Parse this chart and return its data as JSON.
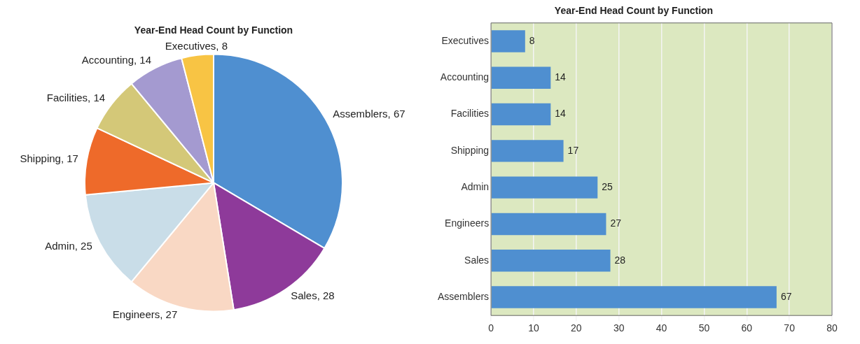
{
  "chart_data": [
    {
      "type": "pie",
      "title": "Year-End Head Count by Function",
      "categories": [
        "Assemblers",
        "Sales",
        "Engineers",
        "Admin",
        "Shipping",
        "Facilities",
        "Accounting",
        "Executives"
      ],
      "values": [
        67,
        28,
        27,
        25,
        17,
        14,
        14,
        8
      ],
      "colors": [
        "#4f8fd0",
        "#8e3a9a",
        "#f9d8c4",
        "#c9dde8",
        "#ee6a2a",
        "#d4c878",
        "#a49ad0",
        "#f8c444"
      ],
      "value_labels": [
        ", 67",
        ", 28",
        ", 27",
        ", 25",
        ", 17",
        ", 14",
        ", 14",
        ", 8"
      ],
      "legend": false
    },
    {
      "type": "bar",
      "orientation": "horizontal",
      "title": "Year-End Head Count by Function",
      "categories": [
        "Executives",
        "Accounting",
        "Facilities",
        "Shipping",
        "Admin",
        "Engineers",
        "Sales",
        "Assemblers"
      ],
      "values": [
        8,
        14,
        14,
        17,
        25,
        27,
        28,
        67
      ],
      "color": "#4f8fd0",
      "xlim": [
        0,
        80
      ],
      "xticks": [
        0,
        10,
        20,
        30,
        40,
        50,
        60,
        70,
        80
      ],
      "grid": "x",
      "data_labels": true,
      "legend": false
    }
  ]
}
